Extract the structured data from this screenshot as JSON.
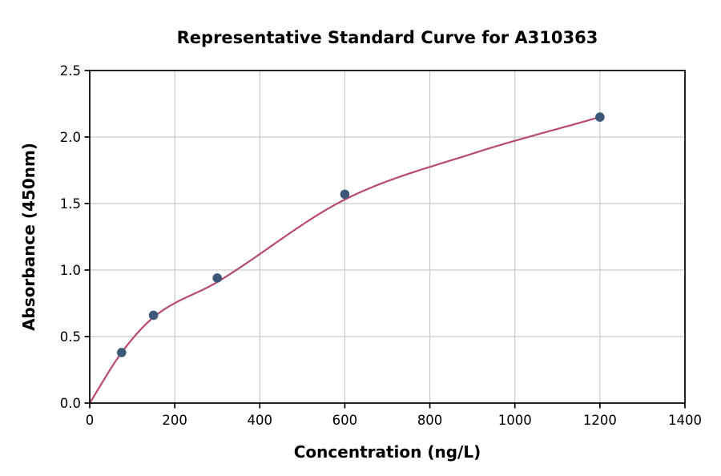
{
  "chart_data": {
    "type": "scatter",
    "title": "Representative Standard Curve for A310363",
    "xlabel": "Concentration (ng/L)",
    "ylabel": "Absorbance (450nm)",
    "xlim": [
      0,
      1400
    ],
    "ylim": [
      0,
      2.5
    ],
    "xticks": [
      0,
      200,
      400,
      600,
      800,
      1000,
      1200,
      1400
    ],
    "xtick_labels": [
      "0",
      "200",
      "400",
      "600",
      "800",
      "1000",
      "1200",
      "1400"
    ],
    "yticks": [
      0,
      0.5,
      1.0,
      1.5,
      2.0,
      2.5
    ],
    "ytick_labels": [
      "0.0",
      "0.5",
      "1.0",
      "1.5",
      "2.0",
      "2.5"
    ],
    "grid": true,
    "legend": "none",
    "series": [
      {
        "name": "standard-points",
        "type": "scatter",
        "color": "#3b5878",
        "points": [
          [
            75,
            0.38
          ],
          [
            150,
            0.66
          ],
          [
            300,
            0.94
          ],
          [
            600,
            1.57
          ],
          [
            1200,
            2.15
          ]
        ]
      },
      {
        "name": "fitted-curve",
        "type": "line",
        "color": "#b74a6e",
        "points": [
          [
            0,
            0
          ],
          [
            75,
            0.38
          ],
          [
            150,
            0.645
          ],
          [
            300,
            0.91
          ],
          [
            600,
            1.53
          ],
          [
            900,
            1.875
          ],
          [
            1200,
            2.15
          ]
        ]
      }
    ]
  }
}
